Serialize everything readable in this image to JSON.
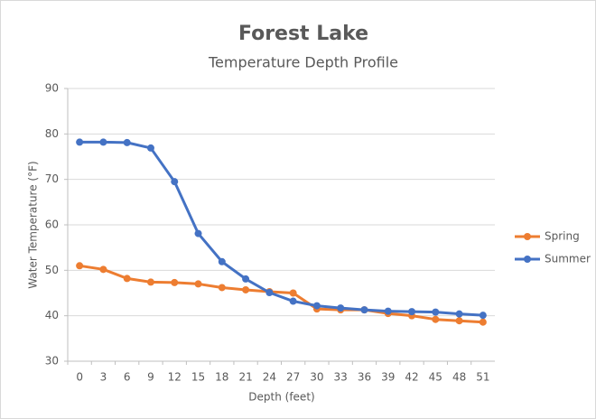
{
  "chart_data": {
    "type": "line",
    "title": "Forest Lake",
    "subtitle": "Temperature  Depth Profile",
    "x_label": "Depth (feet)",
    "y_label": "Water Temperature (°F)",
    "categories": [
      "0",
      "3",
      "6",
      "9",
      "12",
      "15",
      "18",
      "21",
      "24",
      "27",
      "30",
      "33",
      "36",
      "39",
      "42",
      "45",
      "48",
      "51"
    ],
    "series": [
      {
        "name": "Spring",
        "color": "#ed7d31",
        "values": [
          51,
          50.2,
          48.2,
          47.4,
          47.3,
          47,
          46.2,
          45.7,
          45.3,
          45,
          41.5,
          41.3,
          41.3,
          40.5,
          40,
          39.2,
          38.9,
          38.6
        ]
      },
      {
        "name": "Summer",
        "color": "#4472c4",
        "values": [
          78.2,
          78.2,
          78.1,
          76.9,
          69.5,
          58.1,
          51.9,
          48.1,
          45.1,
          43.2,
          42.2,
          41.7,
          41.3,
          41,
          40.9,
          40.8,
          40.4,
          40.1
        ]
      }
    ],
    "ylim": [
      30,
      90
    ],
    "yticks": [
      30,
      40,
      50,
      60,
      70,
      80,
      90
    ],
    "grid": true,
    "legend": "right"
  }
}
